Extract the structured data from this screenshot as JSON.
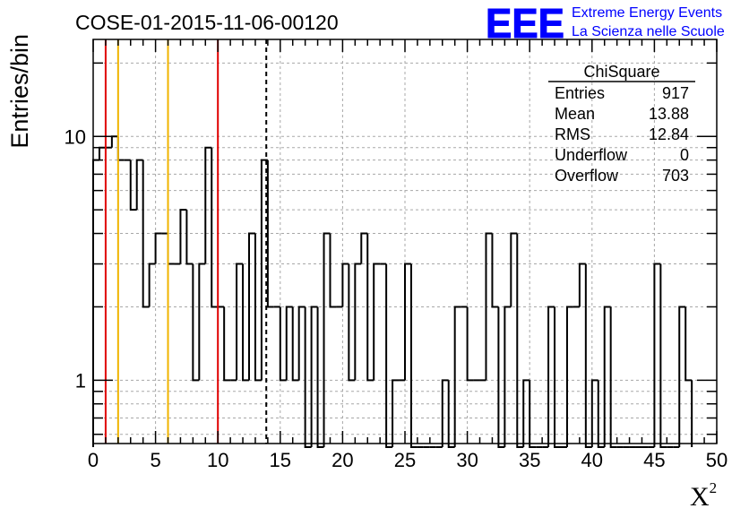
{
  "header": {
    "run_title": "COSE-01-2015-11-06-00120",
    "logo_letters": "EEE",
    "logo_line1": "Extreme Energy Events",
    "logo_line2": "La Scienza nelle Scuole",
    "logo_color": "#0000ff"
  },
  "stats_box": {
    "title": "ChiSquare",
    "rows": [
      {
        "label": "Entries",
        "value": "917"
      },
      {
        "label": "Mean",
        "value": "13.88"
      },
      {
        "label": "RMS",
        "value": "12.84"
      },
      {
        "label": "Underflow",
        "value": "0"
      },
      {
        "label": "Overflow",
        "value": "703"
      }
    ]
  },
  "chart_data": {
    "type": "histogram",
    "title": "COSE-01-2015-11-06-00120",
    "xlabel": "X",
    "xlabel_superscript": "2",
    "ylabel": "Entries/bin",
    "xlim": [
      0,
      50
    ],
    "ylim": [
      0.55,
      25
    ],
    "y_scale": "log",
    "grid": true,
    "x_ticks": [
      0,
      5,
      10,
      15,
      20,
      25,
      30,
      35,
      40,
      45,
      50
    ],
    "y_ticks": [
      1,
      10
    ],
    "bin_width": 0.5,
    "bins": [
      {
        "x": 0.0,
        "count": 8
      },
      {
        "x": 0.5,
        "count": 9
      },
      {
        "x": 1.0,
        "count": 9
      },
      {
        "x": 1.5,
        "count": 10
      },
      {
        "x": 2.0,
        "count": 8
      },
      {
        "x": 2.5,
        "count": 8
      },
      {
        "x": 3.0,
        "count": 5
      },
      {
        "x": 3.5,
        "count": 8
      },
      {
        "x": 4.0,
        "count": 2
      },
      {
        "x": 4.5,
        "count": 3
      },
      {
        "x": 5.0,
        "count": 4
      },
      {
        "x": 5.5,
        "count": 4
      },
      {
        "x": 6.0,
        "count": 3
      },
      {
        "x": 6.5,
        "count": 3
      },
      {
        "x": 7.0,
        "count": 5
      },
      {
        "x": 7.5,
        "count": 3
      },
      {
        "x": 8.0,
        "count": 1
      },
      {
        "x": 8.5,
        "count": 3
      },
      {
        "x": 9.0,
        "count": 9
      },
      {
        "x": 9.5,
        "count": 2
      },
      {
        "x": 10.0,
        "count": 2
      },
      {
        "x": 10.5,
        "count": 1
      },
      {
        "x": 11.0,
        "count": 1
      },
      {
        "x": 11.5,
        "count": 3
      },
      {
        "x": 12.0,
        "count": 1
      },
      {
        "x": 12.5,
        "count": 4
      },
      {
        "x": 13.0,
        "count": 1
      },
      {
        "x": 13.5,
        "count": 8
      },
      {
        "x": 14.0,
        "count": 2
      },
      {
        "x": 14.5,
        "count": 2
      },
      {
        "x": 15.0,
        "count": 1
      },
      {
        "x": 15.5,
        "count": 2
      },
      {
        "x": 16.0,
        "count": 1
      },
      {
        "x": 16.5,
        "count": 2
      },
      {
        "x": 17.0,
        "count": 0
      },
      {
        "x": 17.5,
        "count": 2
      },
      {
        "x": 18.0,
        "count": 0
      },
      {
        "x": 18.5,
        "count": 4
      },
      {
        "x": 19.0,
        "count": 2
      },
      {
        "x": 19.5,
        "count": 2
      },
      {
        "x": 20.0,
        "count": 3
      },
      {
        "x": 20.5,
        "count": 1
      },
      {
        "x": 21.0,
        "count": 3
      },
      {
        "x": 21.5,
        "count": 4
      },
      {
        "x": 22.0,
        "count": 1
      },
      {
        "x": 22.5,
        "count": 3
      },
      {
        "x": 23.0,
        "count": 3
      },
      {
        "x": 23.5,
        "count": 0
      },
      {
        "x": 24.0,
        "count": 1
      },
      {
        "x": 24.5,
        "count": 1
      },
      {
        "x": 25.0,
        "count": 3
      },
      {
        "x": 25.5,
        "count": 0
      },
      {
        "x": 26.0,
        "count": 0
      },
      {
        "x": 26.5,
        "count": 0
      },
      {
        "x": 27.0,
        "count": 0
      },
      {
        "x": 27.5,
        "count": 0
      },
      {
        "x": 28.0,
        "count": 1
      },
      {
        "x": 28.5,
        "count": 0
      },
      {
        "x": 29.0,
        "count": 2
      },
      {
        "x": 29.5,
        "count": 2
      },
      {
        "x": 30.0,
        "count": 1
      },
      {
        "x": 30.5,
        "count": 1
      },
      {
        "x": 31.0,
        "count": 1
      },
      {
        "x": 31.5,
        "count": 4
      },
      {
        "x": 32.0,
        "count": 2
      },
      {
        "x": 32.5,
        "count": 0
      },
      {
        "x": 33.0,
        "count": 2
      },
      {
        "x": 33.5,
        "count": 4
      },
      {
        "x": 34.0,
        "count": 0
      },
      {
        "x": 34.5,
        "count": 1
      },
      {
        "x": 35.0,
        "count": 0
      },
      {
        "x": 35.5,
        "count": 0
      },
      {
        "x": 36.0,
        "count": 0
      },
      {
        "x": 36.5,
        "count": 2
      },
      {
        "x": 37.0,
        "count": 0
      },
      {
        "x": 37.5,
        "count": 0
      },
      {
        "x": 38.0,
        "count": 2
      },
      {
        "x": 38.5,
        "count": 2
      },
      {
        "x": 39.0,
        "count": 3
      },
      {
        "x": 39.5,
        "count": 0
      },
      {
        "x": 40.0,
        "count": 1
      },
      {
        "x": 40.5,
        "count": 0
      },
      {
        "x": 41.0,
        "count": 2
      },
      {
        "x": 41.5,
        "count": 0
      },
      {
        "x": 42.0,
        "count": 0
      },
      {
        "x": 42.5,
        "count": 0
      },
      {
        "x": 43.0,
        "count": 0
      },
      {
        "x": 43.5,
        "count": 0
      },
      {
        "x": 44.0,
        "count": 0
      },
      {
        "x": 44.5,
        "count": 0
      },
      {
        "x": 45.0,
        "count": 3
      },
      {
        "x": 45.5,
        "count": 0
      },
      {
        "x": 46.0,
        "count": 0
      },
      {
        "x": 46.5,
        "count": 0
      },
      {
        "x": 47.0,
        "count": 2
      },
      {
        "x": 47.5,
        "count": 1
      }
    ],
    "reference_lines": [
      {
        "x": 1,
        "color": "#e00000",
        "style": "solid"
      },
      {
        "x": 2,
        "color": "#f0b400",
        "style": "solid"
      },
      {
        "x": 6,
        "color": "#f0b400",
        "style": "solid"
      },
      {
        "x": 10,
        "color": "#e00000",
        "style": "solid"
      },
      {
        "x": 13.88,
        "color": "#000000",
        "style": "dashed"
      }
    ]
  }
}
